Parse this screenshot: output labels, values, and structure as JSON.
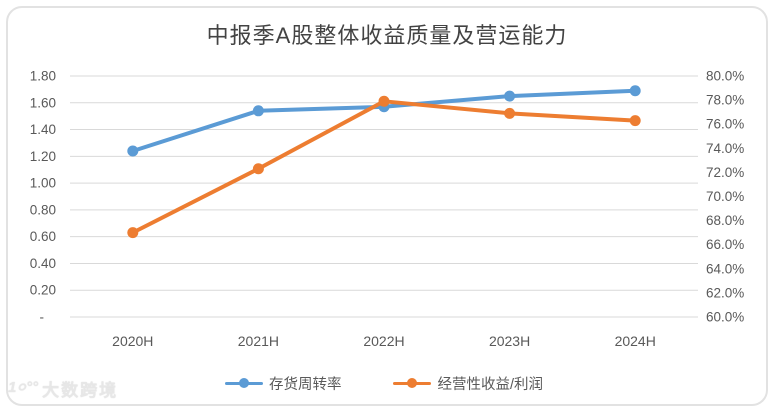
{
  "watermark": {
    "logo": "1০°°",
    "text": "大数跨境"
  },
  "chart_data": {
    "type": "line",
    "title": "中报季A股整体收益质量及营运能力",
    "categories": [
      "2020H",
      "2021H",
      "2022H",
      "2023H",
      "2024H"
    ],
    "series": [
      {
        "name": "存货周转率",
        "axis": "left",
        "color": "#5B9BD5",
        "values": [
          1.24,
          1.54,
          1.57,
          1.65,
          1.69
        ]
      },
      {
        "name": "经营性收益/利润",
        "axis": "right",
        "color": "#ED7D31",
        "values": [
          67.0,
          72.3,
          77.9,
          76.9,
          76.3
        ]
      }
    ],
    "left_axis": {
      "min": 0,
      "max": 1.8,
      "ticks": [
        "1.80",
        "1.60",
        "1.40",
        "1.20",
        "1.00",
        "0.80",
        "0.60",
        "0.40",
        "0.20",
        "-"
      ]
    },
    "right_axis": {
      "min": 60,
      "max": 80,
      "ticks": [
        "80.0%",
        "78.0%",
        "76.0%",
        "74.0%",
        "72.0%",
        "70.0%",
        "68.0%",
        "66.0%",
        "64.0%",
        "62.0%",
        "60.0%"
      ]
    },
    "grid": true,
    "grid_color": "#D9D9D9",
    "legend_position": "bottom"
  }
}
